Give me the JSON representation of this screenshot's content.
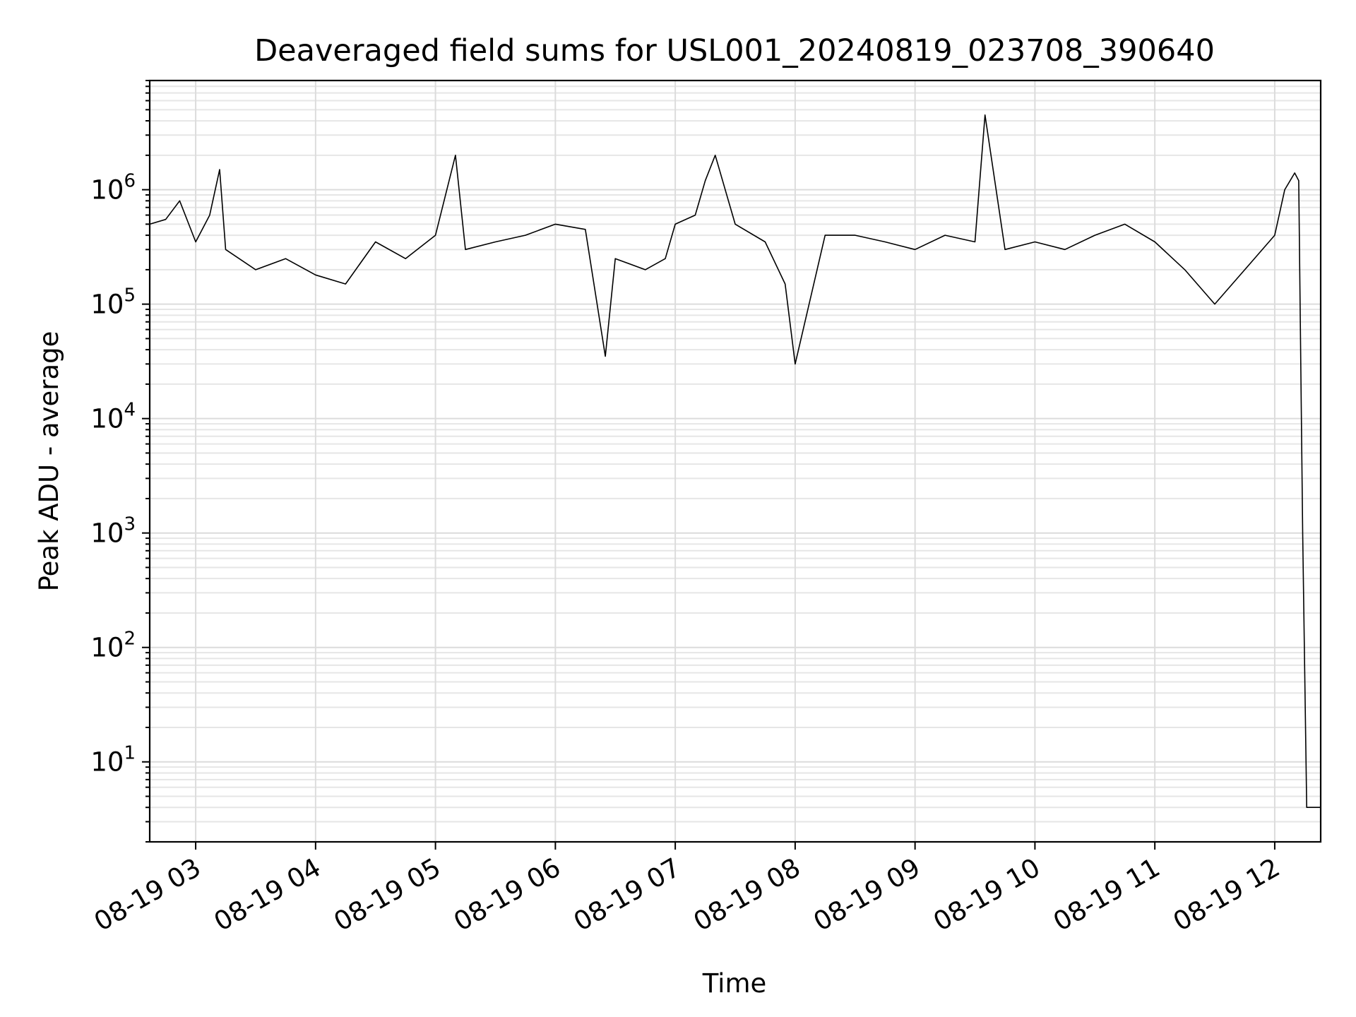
{
  "chart_data": {
    "type": "line",
    "title": "Deaveraged field sums for USL001_20240819_023708_390640",
    "xlabel": "Time",
    "ylabel": "Peak ADU - average",
    "yscale": "log",
    "ylim": [
      2,
      9000000
    ],
    "xlim": [
      "2024-08-19 02:37",
      "2024-08-19 12:23"
    ],
    "grid": "major and minor",
    "x_ticks": [
      "08-19 03",
      "08-19 04",
      "08-19 05",
      "08-19 06",
      "08-19 07",
      "08-19 08",
      "08-19 09",
      "08-19 10",
      "08-19 11",
      "08-19 12"
    ],
    "y_ticks": [
      {
        "base": "10",
        "exp": "1"
      },
      {
        "base": "10",
        "exp": "2"
      },
      {
        "base": "10",
        "exp": "3"
      },
      {
        "base": "10",
        "exp": "4"
      },
      {
        "base": "10",
        "exp": "5"
      },
      {
        "base": "10",
        "exp": "6"
      }
    ],
    "series": [
      {
        "color": "#000000",
        "note": "noisy signal, approximately 2e4–4.5e6, sharp drop to ~4 near 12:10",
        "x": [
          "02:37",
          "02:45",
          "02:52",
          "03:00",
          "03:07",
          "03:12",
          "03:15",
          "03:30",
          "03:45",
          "04:00",
          "04:15",
          "04:30",
          "04:45",
          "05:00",
          "05:10",
          "05:15",
          "05:30",
          "05:45",
          "06:00",
          "06:15",
          "06:25",
          "06:30",
          "06:45",
          "06:55",
          "07:00",
          "07:10",
          "07:15",
          "07:20",
          "07:30",
          "07:45",
          "07:55",
          "08:00",
          "08:15",
          "08:30",
          "08:45",
          "09:00",
          "09:15",
          "09:30",
          "09:35",
          "09:45",
          "10:00",
          "10:15",
          "10:30",
          "10:45",
          "11:00",
          "11:15",
          "11:30",
          "11:45",
          "12:00",
          "12:05",
          "12:10",
          "12:12",
          "12:14",
          "12:16",
          "12:23"
        ],
        "y": [
          500000,
          550000,
          800000,
          350000,
          600000,
          1500000,
          300000,
          200000,
          250000,
          180000,
          150000,
          350000,
          250000,
          400000,
          2000000,
          300000,
          350000,
          400000,
          500000,
          450000,
          35000,
          250000,
          200000,
          250000,
          500000,
          600000,
          1200000,
          2000000,
          500000,
          350000,
          150000,
          30000,
          400000,
          400000,
          350000,
          300000,
          400000,
          350000,
          4500000,
          300000,
          350000,
          300000,
          400000,
          500000,
          350000,
          200000,
          100000,
          200000,
          400000,
          1000000,
          1400000,
          1200000,
          1000,
          4,
          4
        ]
      }
    ]
  }
}
